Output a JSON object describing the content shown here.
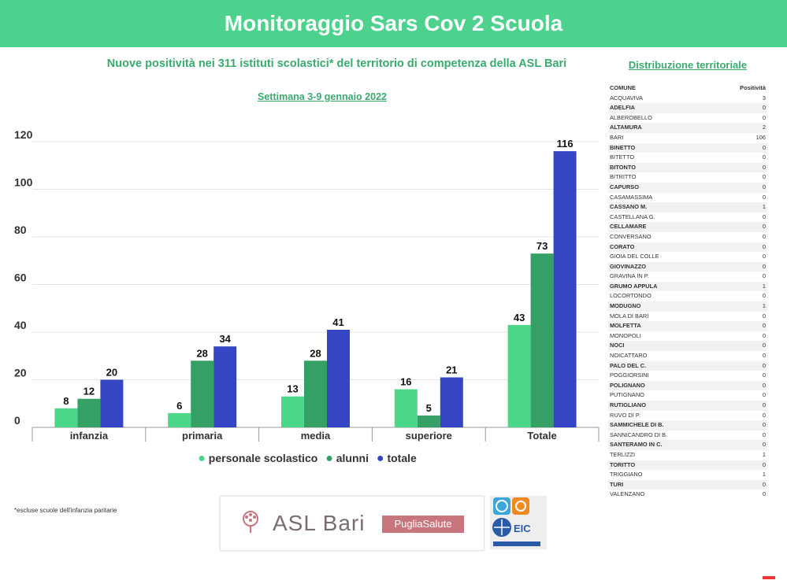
{
  "header": {
    "title": "Monitoraggio Sars Cov 2 Scuola"
  },
  "subtitle": {
    "text_pre": "Nuove positività nei 311 istituti scolastici* del territorio di competenza della ASL Bari"
  },
  "week": "Settimana 3-9 gennaio 2022",
  "distribution": {
    "title": "Distribuzione territoriale",
    "col_comune": "COMUNE",
    "col_positivita": "Positività",
    "rows": [
      {
        "comune": "ACQUAVIVA",
        "value": "3"
      },
      {
        "comune": "ADELFIA",
        "value": "0"
      },
      {
        "comune": "ALBEROBELLO",
        "value": "0"
      },
      {
        "comune": "ALTAMURA",
        "value": "2"
      },
      {
        "comune": "BARI",
        "value": "106"
      },
      {
        "comune": "BINETTO",
        "value": "0"
      },
      {
        "comune": "BITETTO",
        "value": "0"
      },
      {
        "comune": "BITONTO",
        "value": "0"
      },
      {
        "comune": "BITRITTO",
        "value": "0"
      },
      {
        "comune": " CAPURSO",
        "value": "0"
      },
      {
        "comune": "CASAMASSIMA",
        "value": "0"
      },
      {
        "comune": "CASSANO M.",
        "value": "1"
      },
      {
        "comune": "CASTELLANA  G.",
        "value": "0"
      },
      {
        "comune": "CELLAMARE",
        "value": "0"
      },
      {
        "comune": "CONVERSANO",
        "value": "0"
      },
      {
        "comune": "CORATO",
        "value": "0"
      },
      {
        "comune": "GIOIA DEL COLLE",
        "value": "0"
      },
      {
        "comune": "GIOVINAZZO",
        "value": "0"
      },
      {
        "comune": "GRAVINA IN P.",
        "value": "0"
      },
      {
        "comune": "GRUMO APPULA",
        "value": "1"
      },
      {
        "comune": "LOCORTONDO",
        "value": "0"
      },
      {
        "comune": "MODUGNO",
        "value": "1"
      },
      {
        "comune": "MOLA DI BARI",
        "value": "0"
      },
      {
        "comune": "MOLFETTA",
        "value": "0"
      },
      {
        "comune": "MONOPOLI",
        "value": "0"
      },
      {
        "comune": "NOCI",
        "value": "0"
      },
      {
        "comune": "NOICATTARO",
        "value": "0"
      },
      {
        "comune": "PALO DEL C.",
        "value": "0"
      },
      {
        "comune": "POGGIORSINI",
        "value": "0"
      },
      {
        "comune": "POLIGNANO",
        "value": "0"
      },
      {
        "comune": "PUTIGNANO",
        "value": "0"
      },
      {
        "comune": "RUTIGLIANO",
        "value": "0"
      },
      {
        "comune": "RUVO DI P.",
        "value": "0"
      },
      {
        "comune": "SAMMICHELE DI B.",
        "value": "0"
      },
      {
        "comune": "SANNICANDRO DI B.",
        "value": "0"
      },
      {
        "comune": "SANTERAMO IN C.",
        "value": "0"
      },
      {
        "comune": "TERLIZZI",
        "value": "1"
      },
      {
        "comune": "TORITTO",
        "value": "0"
      },
      {
        "comune": "TRIGGIANO",
        "value": "1"
      },
      {
        "comune": "TURI",
        "value": "0"
      },
      {
        "comune": "VALENZANO",
        "value": "0"
      }
    ]
  },
  "note": "*escluse scuole dell'infanzia paritarie",
  "logos": {
    "asl": "ASL Bari",
    "puglia": "PugliaSalute",
    "eic": "EIC"
  },
  "colors": {
    "header": "#4cd28c",
    "personale": "#4cd68a",
    "alunni": "#34a066",
    "totale": "#3446c4",
    "accent_text": "#3aaa6e"
  },
  "chart_data": {
    "type": "bar",
    "categories": [
      "infanzia",
      "primaria",
      "media",
      "superiore",
      "Totale"
    ],
    "series": [
      {
        "name": "personale scolastico",
        "values": [
          8,
          6,
          13,
          16,
          43
        ],
        "color": "#4cd68a"
      },
      {
        "name": "alunni",
        "values": [
          12,
          28,
          28,
          5,
          73
        ],
        "color": "#34a066"
      },
      {
        "name": "totale",
        "values": [
          20,
          34,
          41,
          21,
          116
        ],
        "color": "#3446c4"
      }
    ],
    "yticks": [
      "0",
      "20",
      "40",
      "60",
      "80",
      "100",
      "120"
    ],
    "ylim": [
      0,
      120
    ],
    "grid": true,
    "legend": "bottom"
  }
}
